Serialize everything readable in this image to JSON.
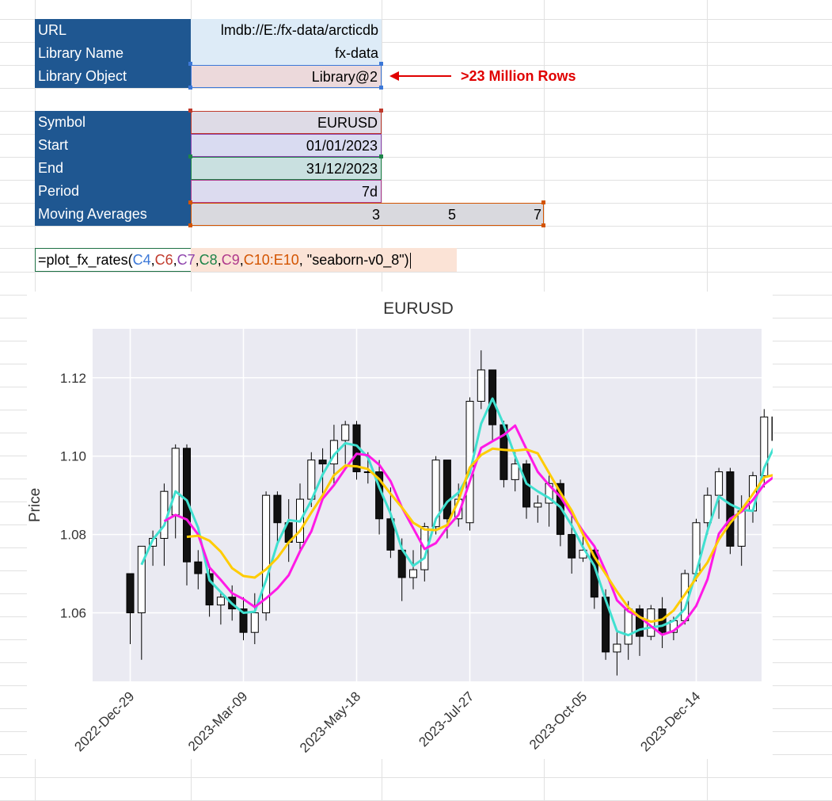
{
  "sheet": {
    "rows": [
      {
        "label": "URL",
        "value": "lmdb://E:/fx-data/arcticdb"
      },
      {
        "label": "Library Name",
        "value": "fx-data"
      },
      {
        "label": "Library Object",
        "value": "Library@2"
      },
      {
        "label": "Symbol",
        "value": "EURUSD"
      },
      {
        "label": "Start",
        "value": "01/01/2023"
      },
      {
        "label": "End",
        "value": "31/12/2023"
      },
      {
        "label": "Period",
        "value": "7d"
      },
      {
        "label": "Moving Averages",
        "value": ""
      }
    ],
    "moving_averages": [
      "3",
      "5",
      "7"
    ],
    "annotation": ">23 Million Rows",
    "formula": {
      "prefix": "=plot_fx_rates(",
      "refs": [
        "C4",
        "C6",
        "C7",
        "C8",
        "C9",
        "C10:E10"
      ],
      "suffix": ", \"seaborn-v0_8\")"
    },
    "ref_colors": [
      "#3c78d8",
      "#c0392b",
      "#8e44ad",
      "#1e8449",
      "#b03a8c",
      "#d35400"
    ]
  },
  "chart_data": {
    "type": "candlestick",
    "title": "EURUSD",
    "ylabel": "Price",
    "xlabel": "",
    "ylim": [
      1.0425,
      1.1325
    ],
    "yticks": [
      1.06,
      1.08,
      1.1,
      1.12
    ],
    "x_tick_labels": [
      "2022-Dec-29",
      "2023-Mar-09",
      "2023-May-18",
      "2023-Jul-27",
      "2023-Oct-05",
      "2023-Dec-14"
    ],
    "grid": true,
    "candles": [
      {
        "o": 1.07,
        "h": 1.07,
        "l": 1.052,
        "c": 1.06
      },
      {
        "o": 1.06,
        "h": 1.077,
        "l": 1.048,
        "c": 1.077
      },
      {
        "o": 1.077,
        "h": 1.081,
        "l": 1.072,
        "c": 1.079
      },
      {
        "o": 1.079,
        "h": 1.093,
        "l": 1.072,
        "c": 1.091
      },
      {
        "o": 1.085,
        "h": 1.103,
        "l": 1.079,
        "c": 1.102
      },
      {
        "o": 1.102,
        "h": 1.103,
        "l": 1.067,
        "c": 1.073
      },
      {
        "o": 1.073,
        "h": 1.076,
        "l": 1.066,
        "c": 1.07
      },
      {
        "o": 1.07,
        "h": 1.072,
        "l": 1.059,
        "c": 1.062
      },
      {
        "o": 1.062,
        "h": 1.065,
        "l": 1.057,
        "c": 1.064
      },
      {
        "o": 1.064,
        "h": 1.067,
        "l": 1.058,
        "c": 1.061
      },
      {
        "o": 1.061,
        "h": 1.064,
        "l": 1.053,
        "c": 1.055
      },
      {
        "o": 1.055,
        "h": 1.065,
        "l": 1.052,
        "c": 1.06
      },
      {
        "o": 1.06,
        "h": 1.091,
        "l": 1.058,
        "c": 1.09
      },
      {
        "o": 1.09,
        "h": 1.091,
        "l": 1.078,
        "c": 1.083
      },
      {
        "o": 1.083,
        "h": 1.089,
        "l": 1.073,
        "c": 1.078
      },
      {
        "o": 1.078,
        "h": 1.093,
        "l": 1.076,
        "c": 1.089
      },
      {
        "o": 1.089,
        "h": 1.101,
        "l": 1.087,
        "c": 1.099
      },
      {
        "o": 1.099,
        "h": 1.102,
        "l": 1.09,
        "c": 1.098
      },
      {
        "o": 1.098,
        "h": 1.108,
        "l": 1.093,
        "c": 1.104
      },
      {
        "o": 1.104,
        "h": 1.109,
        "l": 1.098,
        "c": 1.108
      },
      {
        "o": 1.108,
        "h": 1.109,
        "l": 1.094,
        "c": 1.096
      },
      {
        "o": 1.096,
        "h": 1.101,
        "l": 1.093,
        "c": 1.096
      },
      {
        "o": 1.096,
        "h": 1.099,
        "l": 1.08,
        "c": 1.084
      },
      {
        "o": 1.084,
        "h": 1.092,
        "l": 1.074,
        "c": 1.076
      },
      {
        "o": 1.076,
        "h": 1.079,
        "l": 1.063,
        "c": 1.069
      },
      {
        "o": 1.069,
        "h": 1.076,
        "l": 1.066,
        "c": 1.071
      },
      {
        "o": 1.071,
        "h": 1.083,
        "l": 1.068,
        "c": 1.082
      },
      {
        "o": 1.082,
        "h": 1.1,
        "l": 1.08,
        "c": 1.099
      },
      {
        "o": 1.099,
        "h": 1.099,
        "l": 1.079,
        "c": 1.084
      },
      {
        "o": 1.084,
        "h": 1.093,
        "l": 1.082,
        "c": 1.089
      },
      {
        "o": 1.083,
        "h": 1.115,
        "l": 1.081,
        "c": 1.114
      },
      {
        "o": 1.114,
        "h": 1.127,
        "l": 1.112,
        "c": 1.122
      },
      {
        "o": 1.122,
        "h": 1.122,
        "l": 1.104,
        "c": 1.108
      },
      {
        "o": 1.108,
        "h": 1.109,
        "l": 1.092,
        "c": 1.094
      },
      {
        "o": 1.094,
        "h": 1.101,
        "l": 1.091,
        "c": 1.098
      },
      {
        "o": 1.098,
        "h": 1.099,
        "l": 1.084,
        "c": 1.087
      },
      {
        "o": 1.087,
        "h": 1.09,
        "l": 1.083,
        "c": 1.088
      },
      {
        "o": 1.088,
        "h": 1.095,
        "l": 1.082,
        "c": 1.093
      },
      {
        "o": 1.093,
        "h": 1.094,
        "l": 1.077,
        "c": 1.08
      },
      {
        "o": 1.08,
        "h": 1.085,
        "l": 1.07,
        "c": 1.074
      },
      {
        "o": 1.074,
        "h": 1.08,
        "l": 1.073,
        "c": 1.076
      },
      {
        "o": 1.076,
        "h": 1.077,
        "l": 1.061,
        "c": 1.064
      },
      {
        "o": 1.064,
        "h": 1.066,
        "l": 1.048,
        "c": 1.05
      },
      {
        "o": 1.05,
        "h": 1.055,
        "l": 1.044,
        "c": 1.052
      },
      {
        "o": 1.052,
        "h": 1.063,
        "l": 1.048,
        "c": 1.061
      },
      {
        "o": 1.061,
        "h": 1.062,
        "l": 1.049,
        "c": 1.054
      },
      {
        "o": 1.054,
        "h": 1.062,
        "l": 1.053,
        "c": 1.061
      },
      {
        "o": 1.061,
        "h": 1.064,
        "l": 1.051,
        "c": 1.055
      },
      {
        "o": 1.055,
        "h": 1.059,
        "l": 1.053,
        "c": 1.058
      },
      {
        "o": 1.058,
        "h": 1.071,
        "l": 1.057,
        "c": 1.07
      },
      {
        "o": 1.07,
        "h": 1.084,
        "l": 1.068,
        "c": 1.083
      },
      {
        "o": 1.083,
        "h": 1.092,
        "l": 1.08,
        "c": 1.09
      },
      {
        "o": 1.09,
        "h": 1.097,
        "l": 1.084,
        "c": 1.096
      },
      {
        "o": 1.096,
        "h": 1.097,
        "l": 1.075,
        "c": 1.077
      },
      {
        "o": 1.077,
        "h": 1.09,
        "l": 1.072,
        "c": 1.086
      },
      {
        "o": 1.086,
        "h": 1.096,
        "l": 1.083,
        "c": 1.095
      },
      {
        "o": 1.095,
        "h": 1.112,
        "l": 1.092,
        "c": 1.11
      },
      {
        "o": 1.11,
        "h": 1.114,
        "l": 1.104,
        "c": 1.104
      }
    ],
    "series": [
      {
        "values": [
          null,
          1.0723,
          1.0787,
          1.0823,
          1.091,
          1.0887,
          1.0817,
          1.0683,
          1.0653,
          1.0623,
          1.06,
          1.0603,
          1.0683,
          1.0777,
          1.0837,
          1.0833,
          1.0887,
          1.0953,
          1.1003,
          1.1033,
          1.1027,
          1.0997,
          1.092,
          1.0853,
          1.0763,
          1.072,
          1.074,
          1.084,
          1.0883,
          1.0907,
          1.0957,
          1.1083,
          1.1147,
          1.108,
          1.1,
          1.093,
          1.091,
          1.0893,
          1.087,
          1.0823,
          1.0767,
          1.072,
          1.0633,
          1.0553,
          1.0543,
          1.0557,
          1.0563,
          1.0567,
          1.058,
          1.061,
          1.0703,
          1.081,
          1.0897,
          1.0877,
          1.0863,
          1.086,
          1.097,
          1.103
        ],
        "color": "#40e0d0"
      },
      {
        "values": [
          null,
          null,
          null,
          1.0834,
          1.085,
          1.0838,
          1.08,
          1.0716,
          1.0684,
          1.065,
          1.0635,
          1.0615,
          1.0637,
          1.0662,
          1.0696,
          1.0757,
          1.0808,
          1.0891,
          1.0926,
          1.0968,
          1.1006,
          1.1002,
          1.0978,
          1.0936,
          1.0869,
          1.0816,
          1.0763,
          1.0778,
          1.0818,
          1.085,
          1.0936,
          1.1021,
          1.1038,
          1.1054,
          1.1078,
          1.1018,
          1.096,
          1.0926,
          1.0896,
          1.0852,
          1.0808,
          1.077,
          1.0706,
          1.0632,
          1.0604,
          1.059,
          1.0566,
          1.0544,
          1.0554,
          1.0578,
          1.0618,
          1.0686,
          1.0802,
          1.084,
          1.0858,
          1.0888,
          1.0928,
          1.095
        ],
        "color": "#ff1ae6"
      },
      {
        "values": [
          null,
          null,
          null,
          null,
          null,
          1.0794,
          1.0797,
          1.0784,
          1.0756,
          1.0714,
          1.0694,
          1.069,
          1.0711,
          1.074,
          1.078,
          1.0809,
          1.0856,
          1.09,
          1.0951,
          1.0976,
          1.0974,
          1.0967,
          1.0941,
          1.0904,
          1.0869,
          1.083,
          1.0813,
          1.0811,
          1.0824,
          1.0887,
          1.0971,
          1.1003,
          1.1019,
          1.1016,
          1.1014,
          1.1017,
          1.1007,
          1.0957,
          1.0907,
          1.0861,
          1.08,
          1.0743,
          1.0699,
          1.0654,
          1.0614,
          1.0589,
          1.0577,
          1.0583,
          1.0606,
          1.0647,
          1.0689,
          1.0729,
          1.0787,
          1.0829,
          1.0863,
          1.0903,
          1.0946,
          1.0953
        ],
        "color": "#ffcc00"
      }
    ]
  }
}
